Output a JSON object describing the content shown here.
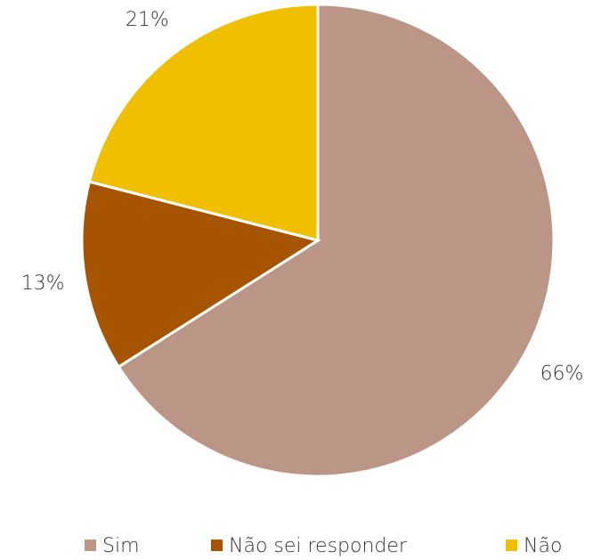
{
  "chart_data": {
    "type": "pie",
    "categories": [
      "Sim",
      "Não sei responder",
      "Não"
    ],
    "values": [
      66,
      13,
      21
    ],
    "value_labels": [
      "66%",
      "13%",
      "21%"
    ],
    "colors": [
      "#bb9585",
      "#a65400",
      "#f0c000"
    ]
  }
}
